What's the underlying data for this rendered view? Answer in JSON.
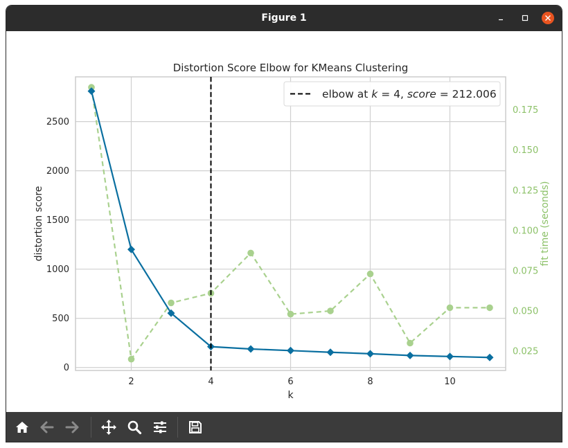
{
  "window": {
    "title": "Figure 1"
  },
  "toolbar": {
    "buttons": [
      "home-icon",
      "back-arrow-icon",
      "forward-arrow-icon",
      "move-icon",
      "zoom-icon",
      "configure-subplots-icon",
      "save-icon"
    ]
  },
  "chart_data": {
    "type": "line",
    "title": "Distortion Score Elbow for KMeans Clustering",
    "xlabel": "k",
    "ylabel": "distortion score",
    "y2label": "fit time (seconds)",
    "xlim": [
      0.6,
      11.4
    ],
    "ylim": [
      -30,
      2955
    ],
    "y2lim": [
      0.013,
      0.1955
    ],
    "xticks": [
      2,
      4,
      6,
      8,
      10
    ],
    "yticks": [
      0,
      500,
      1000,
      1500,
      2000,
      2500
    ],
    "y2ticks": [
      0.025,
      0.05,
      0.075,
      0.1,
      0.125,
      0.15,
      0.175
    ],
    "y2tick_labels": [
      "0.025",
      "0.050",
      "0.075",
      "0.100",
      "0.125",
      "0.150",
      "0.175"
    ],
    "grid": true,
    "legend_position": "top-right",
    "series": [
      {
        "name": "distortion score",
        "axis": "left",
        "color": "#0a6fa0",
        "marker": "diamond",
        "x": [
          1,
          2,
          3,
          4,
          5,
          6,
          7,
          8,
          9,
          10,
          11
        ],
        "y": [
          2810,
          1200,
          553,
          212,
          188,
          172,
          155,
          140,
          122,
          112,
          102
        ]
      },
      {
        "name": "fit time (seconds)",
        "axis": "right",
        "color": "#a9d18e",
        "marker": "circle",
        "dashed": true,
        "x": [
          1,
          2,
          3,
          4,
          5,
          6,
          7,
          8,
          9,
          10,
          11
        ],
        "y": [
          0.189,
          0.02,
          0.055,
          0.061,
          0.086,
          0.048,
          0.05,
          0.073,
          0.03,
          0.052,
          0.052
        ]
      }
    ],
    "annotations": [
      {
        "type": "vline",
        "x": 4,
        "color": "#000000",
        "legend_prefix": "elbow at ",
        "legend_k": "k",
        "legend_mid": " = 4, ",
        "legend_score": "score",
        "legend_suffix": " = 212.006"
      }
    ]
  }
}
